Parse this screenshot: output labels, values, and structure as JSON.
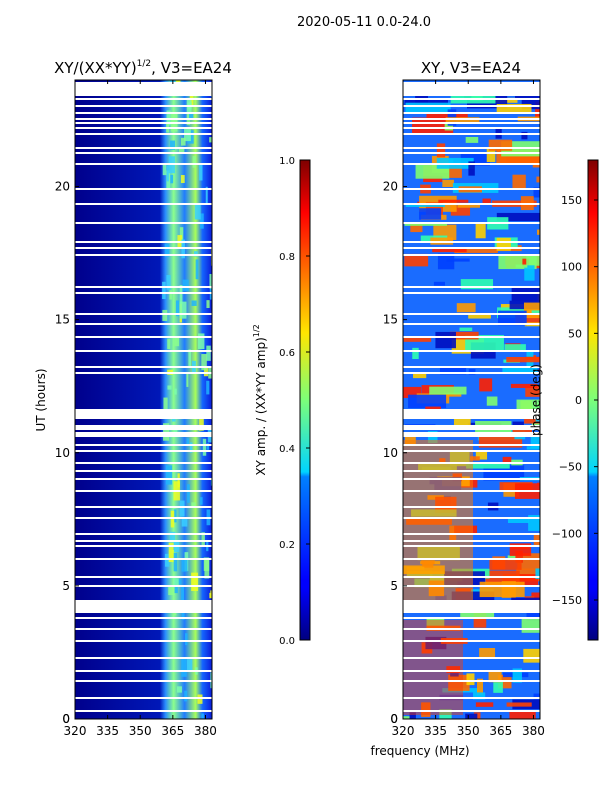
{
  "suptitle": "2020-05-11 0.0-24.0",
  "chart_data": [
    {
      "type": "heatmap",
      "title_main": "XY/(XX*YY)",
      "title_sup": "1/2",
      "title_rest": ", V3=EA24",
      "xlabel": "",
      "ylabel": "UT (hours)",
      "xlim": [
        320,
        383
      ],
      "ylim": [
        0,
        24
      ],
      "xticks": [
        320,
        335,
        350,
        365,
        380
      ],
      "yticks": [
        0,
        5,
        10,
        15,
        20
      ],
      "colorbar": {
        "label_main": "XY amp. / (XX*YY amp)",
        "label_sup": "1/2",
        "range": [
          0.0,
          1.0
        ],
        "ticks": [
          "0.0",
          "0.2",
          "0.4",
          "0.6",
          "0.8",
          "1.0"
        ]
      }
    },
    {
      "type": "heatmap",
      "title": "XY, V3=EA24",
      "xlabel": "frequency (MHz)",
      "ylabel": "",
      "xlim": [
        320,
        383
      ],
      "ylim": [
        0,
        24
      ],
      "xticks": [
        320,
        335,
        350,
        365,
        380
      ],
      "yticks": [
        0,
        5,
        10,
        15,
        20
      ],
      "colorbar": {
        "label": "phase (deg)",
        "range": [
          -180,
          180
        ],
        "ticks": [
          "150",
          "100",
          "50",
          "0",
          "−50",
          "−100",
          "−150"
        ]
      }
    }
  ]
}
